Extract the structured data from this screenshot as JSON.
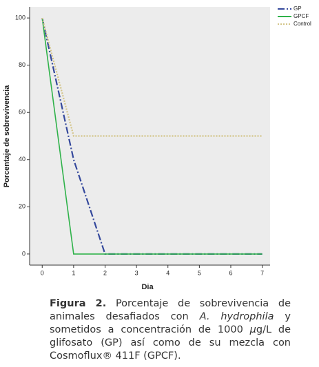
{
  "chart_data": {
    "type": "line",
    "x": [
      0,
      1,
      2,
      3,
      4,
      5,
      6,
      7
    ],
    "series": [
      {
        "name": "GP",
        "color": "#34489c",
        "style": "dashdot",
        "values": [
          100,
          40,
          0,
          0,
          0,
          0,
          0,
          0
        ]
      },
      {
        "name": "GPCF",
        "color": "#2fb24a",
        "style": "solid",
        "values": [
          100,
          0,
          0,
          0,
          0,
          0,
          0,
          0
        ]
      },
      {
        "name": "Control",
        "color": "#d3c487",
        "style": "dotted",
        "values": [
          100,
          50,
          50,
          50,
          50,
          50,
          50,
          50
        ]
      }
    ],
    "xlabel": "Dia",
    "ylabel": "Porcentaje de sobrevivencia",
    "xlim": [
      -0.4,
      7.25
    ],
    "ylim": [
      -4.7,
      104.7
    ],
    "xticks": [
      0,
      1,
      2,
      3,
      4,
      5,
      6,
      7
    ],
    "yticks": [
      0,
      20,
      40,
      60,
      80,
      100
    ],
    "legend": "outside-top-right"
  },
  "caption": {
    "label": "Figura 2.",
    "parts": [
      {
        "text": "Porcentaje de sobrevivencia de animales desafiados con",
        "italic": false
      },
      {
        "text": "A. hydrophila",
        "italic": true
      },
      {
        "text": "y sometidos a concentración de 1000",
        "italic": false
      },
      {
        "text": "μ",
        "italic": true
      },
      {
        "text": "g/L de glifosato (GP) así como de su mezcla con Cosmoflux® 411F (GPCF).",
        "italic": false
      }
    ]
  }
}
